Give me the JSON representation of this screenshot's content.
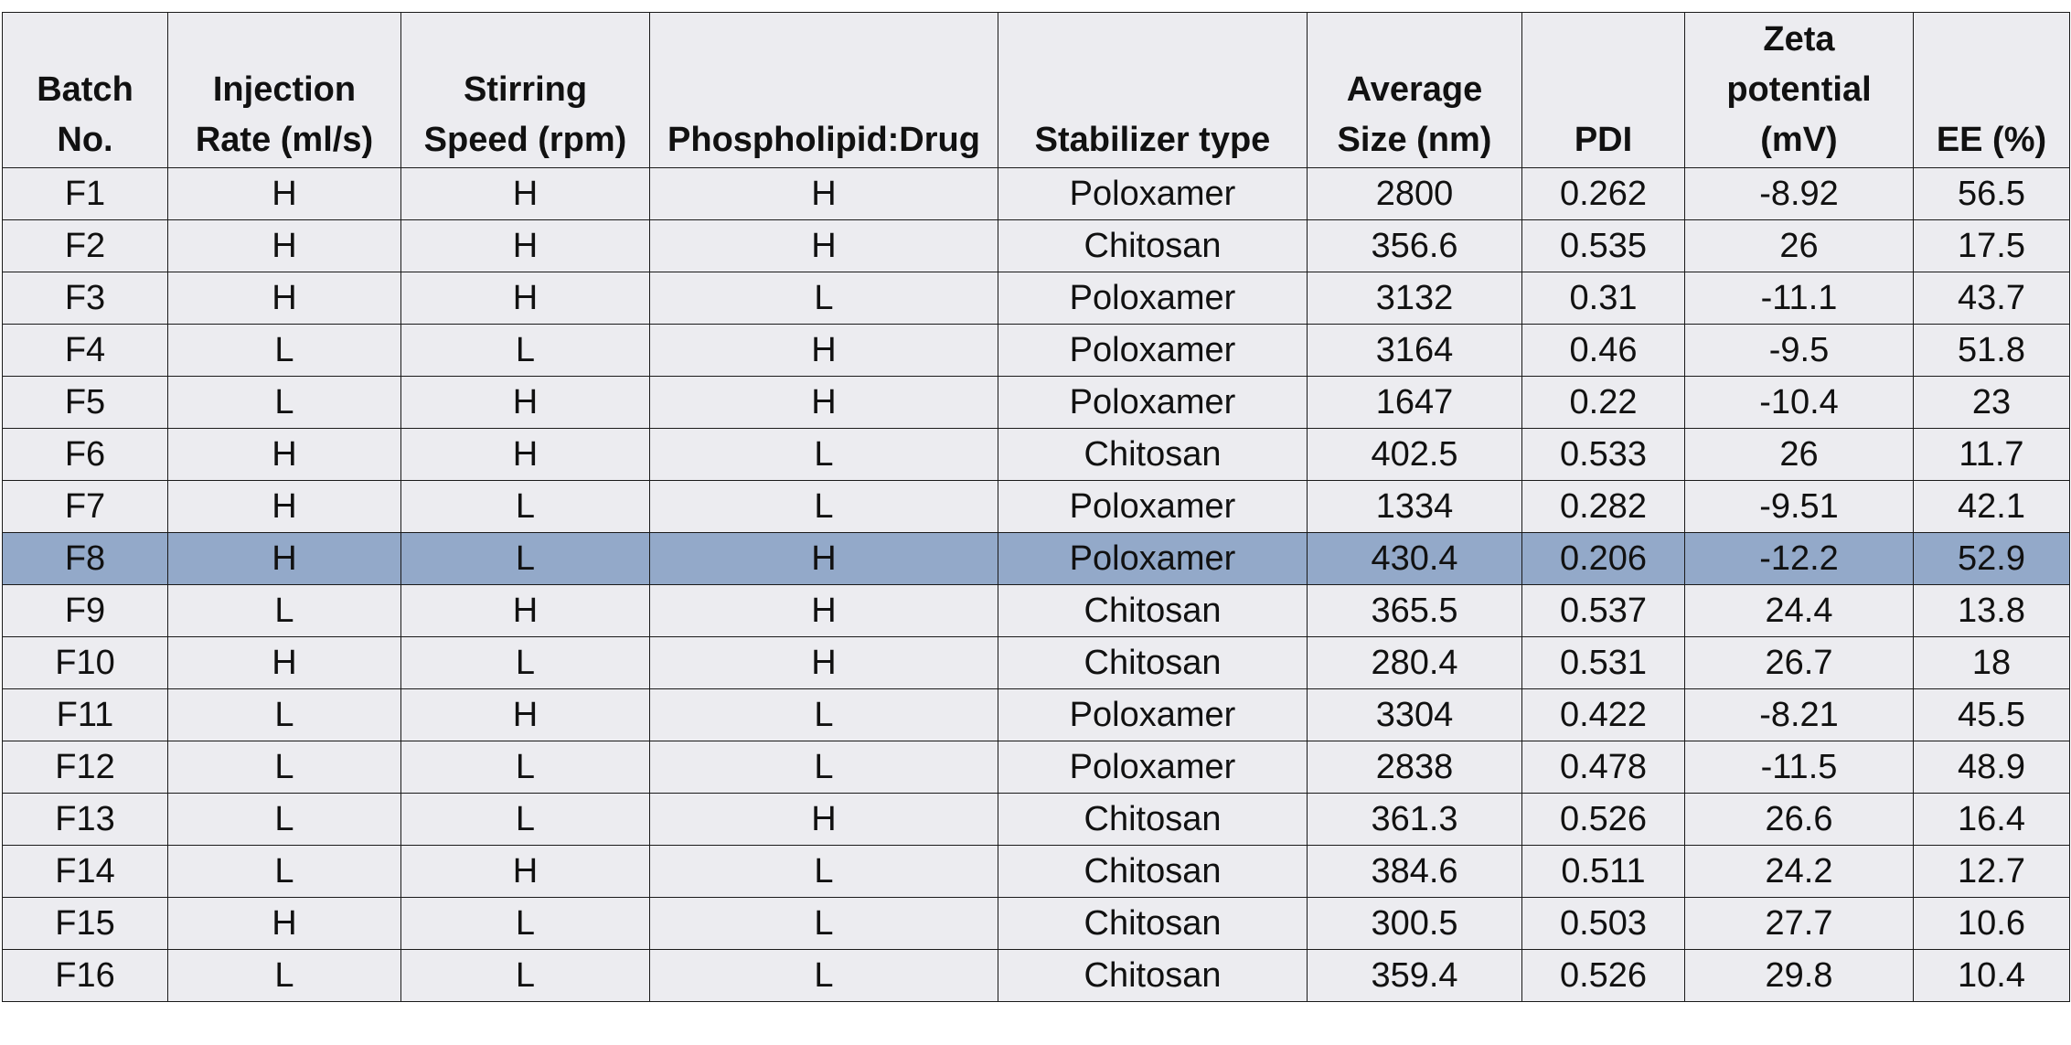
{
  "table": {
    "headers": [
      {
        "key": "batch",
        "lines": [
          "Batch",
          "No."
        ]
      },
      {
        "key": "injection_rate",
        "lines": [
          "Injection",
          "Rate (ml/s)"
        ]
      },
      {
        "key": "stirring_speed",
        "lines": [
          "Stirring",
          "Speed (rpm)"
        ]
      },
      {
        "key": "phospholipid_drug",
        "lines": [
          "Phospholipid:Drug"
        ]
      },
      {
        "key": "stabilizer",
        "lines": [
          "Stabilizer type"
        ]
      },
      {
        "key": "avg_size",
        "lines": [
          "Average",
          "Size (nm)"
        ]
      },
      {
        "key": "pdi",
        "lines": [
          "PDI"
        ]
      },
      {
        "key": "zeta",
        "lines": [
          "Zeta",
          "potential",
          "(mV)"
        ]
      },
      {
        "key": "ee",
        "lines": [
          "EE (%)"
        ]
      }
    ],
    "highlight_color": "#93a9c9",
    "background_color": "#ececf0",
    "rows": [
      {
        "cells": [
          "F1",
          "H",
          "H",
          "H",
          "Poloxamer",
          "2800",
          "0.262",
          "-8.92",
          "56.5"
        ],
        "highlighted": false
      },
      {
        "cells": [
          "F2",
          "H",
          "H",
          "H",
          "Chitosan",
          "356.6",
          "0.535",
          "26",
          "17.5"
        ],
        "highlighted": false
      },
      {
        "cells": [
          "F3",
          "H",
          "H",
          "L",
          "Poloxamer",
          "3132",
          "0.31",
          "-11.1",
          "43.7"
        ],
        "highlighted": false
      },
      {
        "cells": [
          "F4",
          "L",
          "L",
          "H",
          "Poloxamer",
          "3164",
          "0.46",
          "-9.5",
          "51.8"
        ],
        "highlighted": false
      },
      {
        "cells": [
          "F5",
          "L",
          "H",
          "H",
          "Poloxamer",
          "1647",
          "0.22",
          "-10.4",
          "23"
        ],
        "highlighted": false
      },
      {
        "cells": [
          "F6",
          "H",
          "H",
          "L",
          "Chitosan",
          "402.5",
          "0.533",
          "26",
          "11.7"
        ],
        "highlighted": false
      },
      {
        "cells": [
          "F7",
          "H",
          "L",
          "L",
          "Poloxamer",
          "1334",
          "0.282",
          "-9.51",
          "42.1"
        ],
        "highlighted": false
      },
      {
        "cells": [
          "F8",
          "H",
          "L",
          "H",
          "Poloxamer",
          "430.4",
          "0.206",
          "-12.2",
          "52.9"
        ],
        "highlighted": true
      },
      {
        "cells": [
          "F9",
          "L",
          "H",
          "H",
          "Chitosan",
          "365.5",
          "0.537",
          "24.4",
          "13.8"
        ],
        "highlighted": false
      },
      {
        "cells": [
          "F10",
          "H",
          "L",
          "H",
          "Chitosan",
          "280.4",
          "0.531",
          "26.7",
          "18"
        ],
        "highlighted": false
      },
      {
        "cells": [
          "F11",
          "L",
          "H",
          "L",
          "Poloxamer",
          "3304",
          "0.422",
          "-8.21",
          "45.5"
        ],
        "highlighted": false
      },
      {
        "cells": [
          "F12",
          "L",
          "L",
          "L",
          "Poloxamer",
          "2838",
          "0.478",
          "-11.5",
          "48.9"
        ],
        "highlighted": false
      },
      {
        "cells": [
          "F13",
          "L",
          "L",
          "H",
          "Chitosan",
          "361.3",
          "0.526",
          "26.6",
          "16.4"
        ],
        "highlighted": false
      },
      {
        "cells": [
          "F14",
          "L",
          "H",
          "L",
          "Chitosan",
          "384.6",
          "0.511",
          "24.2",
          "12.7"
        ],
        "highlighted": false
      },
      {
        "cells": [
          "F15",
          "H",
          "L",
          "L",
          "Chitosan",
          "300.5",
          "0.503",
          "27.7",
          "10.6"
        ],
        "highlighted": false
      },
      {
        "cells": [
          "F16",
          "L",
          "L",
          "L",
          "Chitosan",
          "359.4",
          "0.526",
          "29.8",
          "10.4"
        ],
        "highlighted": false
      }
    ]
  }
}
